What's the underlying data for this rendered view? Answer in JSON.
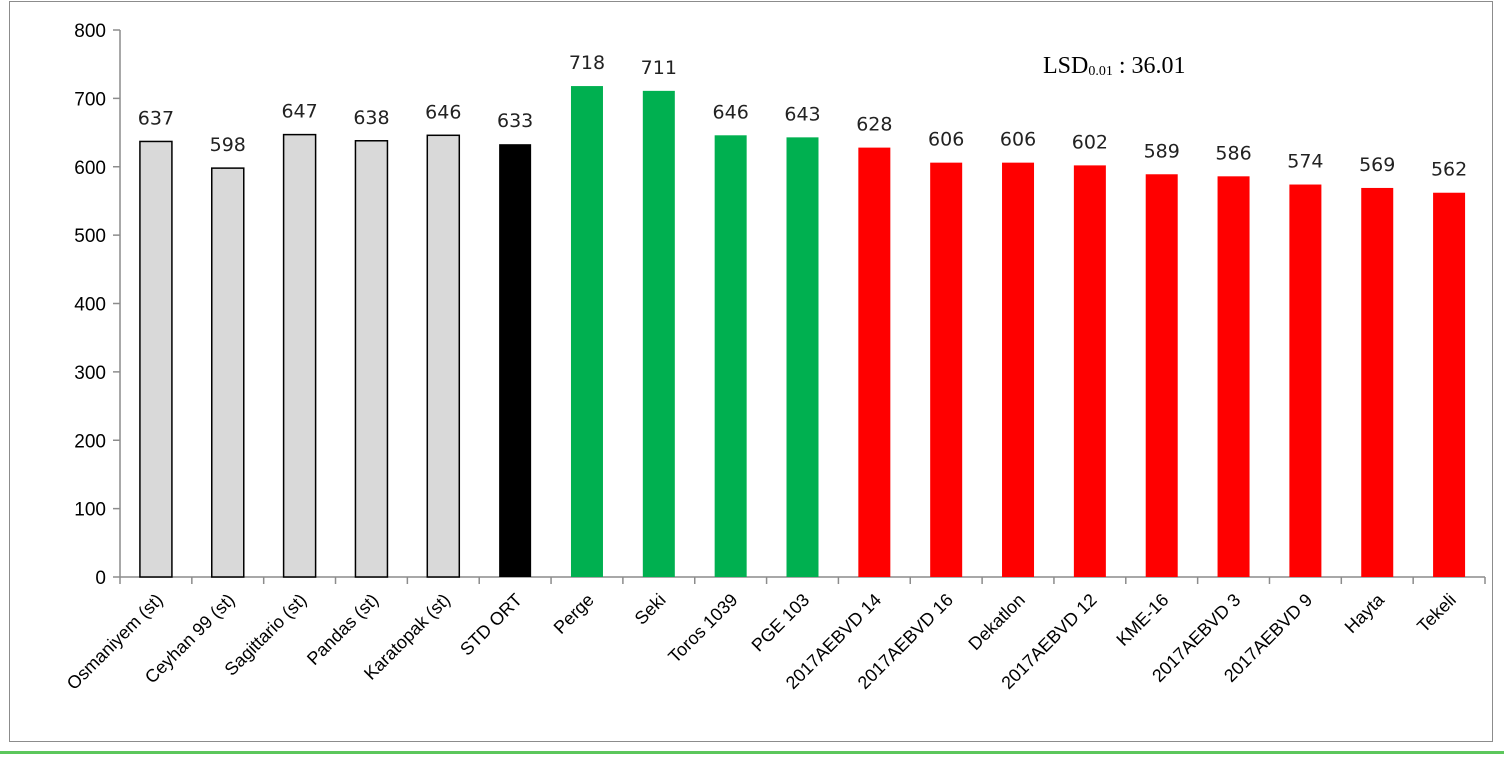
{
  "chart_data": {
    "type": "bar",
    "categories": [
      "Osmaniyem (st)",
      "Ceyhan 99 (st)",
      "Sagittario (st)",
      "Pandas (st)",
      "Karatopak (st)",
      "STD ORT",
      "Perge",
      "Seki",
      "Toros 1039",
      "PGE 103",
      "2017AEBVD 14",
      "2017AEBVD 16",
      "Dekatlon",
      "2017AEBVD 12",
      "KME-16",
      "2017AEBVD 3",
      "2017AEBVD 9",
      "Hayta",
      "Tekeli"
    ],
    "values": [
      637,
      598,
      647,
      638,
      646,
      633,
      718,
      711,
      646,
      643,
      628,
      606,
      606,
      602,
      589,
      586,
      574,
      569,
      562
    ],
    "bar_colors": [
      "#d9d9d9",
      "#d9d9d9",
      "#d9d9d9",
      "#d9d9d9",
      "#d9d9d9",
      "#000000",
      "#00b050",
      "#00b050",
      "#00b050",
      "#00b050",
      "#ff0000",
      "#ff0000",
      "#ff0000",
      "#ff0000",
      "#ff0000",
      "#ff0000",
      "#ff0000",
      "#ff0000",
      "#ff0000"
    ],
    "bar_outlined": [
      true,
      true,
      true,
      true,
      true,
      false,
      false,
      false,
      false,
      false,
      false,
      false,
      false,
      false,
      false,
      false,
      false,
      false,
      false
    ],
    "ylim": [
      0,
      800
    ],
    "yticks": [
      0,
      100,
      200,
      300,
      400,
      500,
      600,
      700,
      800
    ],
    "grid": false,
    "legend": "none",
    "annotation": {
      "main": "LSD",
      "subscript": "0.01",
      "rest": " : 36.01"
    }
  }
}
